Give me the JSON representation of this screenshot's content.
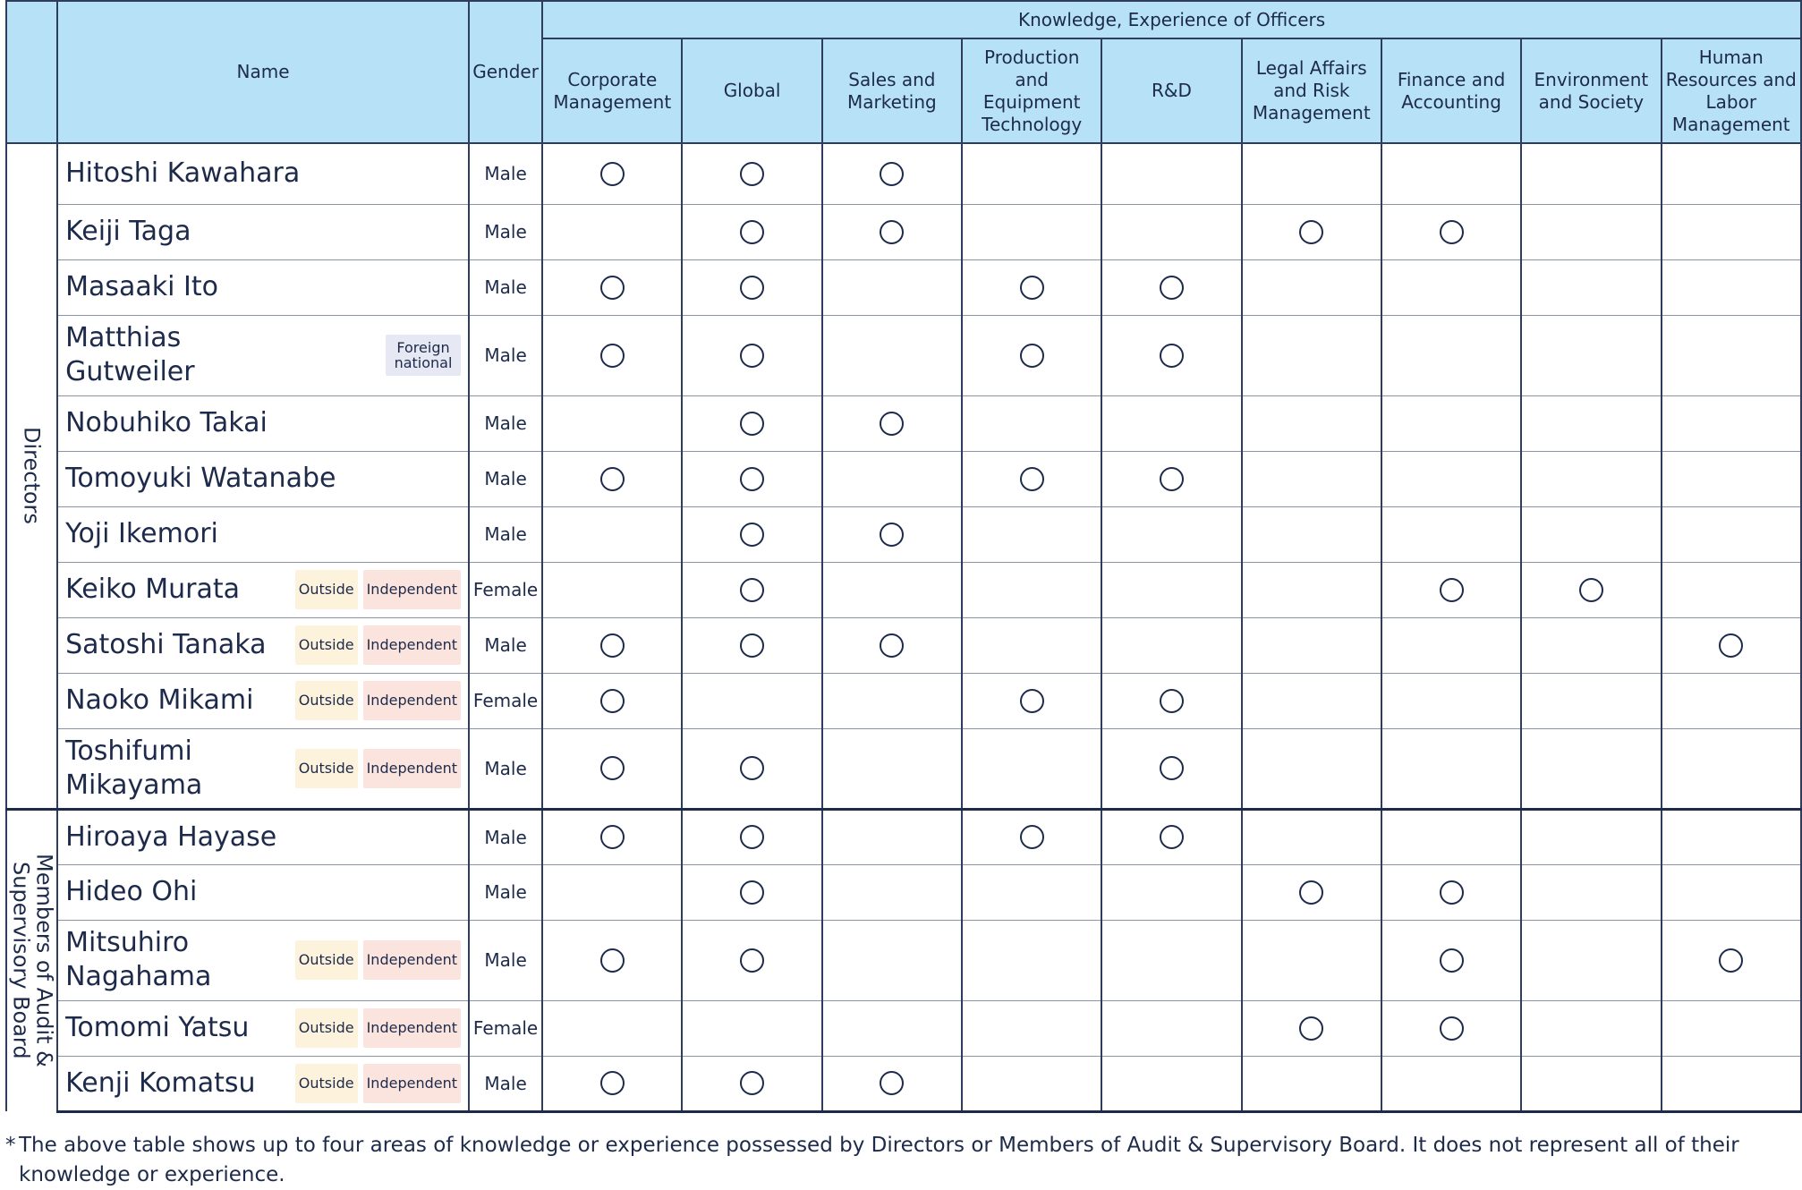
{
  "header": {
    "name_label": "Name",
    "gender_label": "Gender",
    "group_title": "Knowledge, Experience of Officers",
    "columns": [
      "Corporate Management",
      "Global",
      "Sales and Marketing",
      "Production and Equipment Technology",
      "R&D",
      "Legal Affairs and Risk Management",
      "Finance and Accounting",
      "Environment and Society",
      "Human Resources and Labor Management"
    ]
  },
  "groups": [
    {
      "label": "Directors",
      "rows": [
        {
          "name": "Hitoshi Kawahara",
          "gender": "Male",
          "marks": [
            1,
            1,
            1,
            0,
            0,
            0,
            0,
            0,
            0
          ]
        },
        {
          "name": "Keiji Taga",
          "gender": "Male",
          "marks": [
            0,
            1,
            1,
            0,
            0,
            1,
            1,
            0,
            0
          ]
        },
        {
          "name": "Masaaki Ito",
          "gender": "Male",
          "marks": [
            1,
            1,
            0,
            1,
            1,
            0,
            0,
            0,
            0
          ]
        },
        {
          "name": "Matthias Gutweiler",
          "gender": "Male",
          "tag_foreign": "Foreign national",
          "marks": [
            1,
            1,
            0,
            1,
            1,
            0,
            0,
            0,
            0
          ]
        },
        {
          "name": "Nobuhiko Takai",
          "gender": "Male",
          "marks": [
            0,
            1,
            1,
            0,
            0,
            0,
            0,
            0,
            0
          ]
        },
        {
          "name": "Tomoyuki Watanabe",
          "gender": "Male",
          "marks": [
            1,
            1,
            0,
            1,
            1,
            0,
            0,
            0,
            0
          ]
        },
        {
          "name": "Yoji Ikemori",
          "gender": "Male",
          "marks": [
            0,
            1,
            1,
            0,
            0,
            0,
            0,
            0,
            0
          ]
        },
        {
          "name": "Keiko Murata",
          "gender": "Female",
          "tag_outside": "Outside",
          "tag_independent": "Independent",
          "marks": [
            0,
            1,
            0,
            0,
            0,
            0,
            1,
            1,
            0
          ]
        },
        {
          "name": "Satoshi Tanaka",
          "gender": "Male",
          "tag_outside": "Outside",
          "tag_independent": "Independent",
          "marks": [
            1,
            1,
            1,
            0,
            0,
            0,
            0,
            0,
            1
          ]
        },
        {
          "name": "Naoko Mikami",
          "gender": "Female",
          "tag_outside": "Outside",
          "tag_independent": "Independent",
          "marks": [
            1,
            0,
            0,
            1,
            1,
            0,
            0,
            0,
            0
          ]
        },
        {
          "name": "Toshifumi Mikayama",
          "gender": "Male",
          "tag_outside": "Outside",
          "tag_independent": "Independent",
          "marks": [
            1,
            1,
            0,
            0,
            1,
            0,
            0,
            0,
            0
          ]
        }
      ]
    },
    {
      "label": "Members of Audit & Supervisory Board",
      "rows": [
        {
          "name": "Hiroaya Hayase",
          "gender": "Male",
          "marks": [
            1,
            1,
            0,
            1,
            1,
            0,
            0,
            0,
            0
          ]
        },
        {
          "name": "Hideo Ohi",
          "gender": "Male",
          "marks": [
            0,
            1,
            0,
            0,
            0,
            1,
            1,
            0,
            0
          ]
        },
        {
          "name": "Mitsuhiro Nagahama",
          "gender": "Male",
          "tag_outside": "Outside",
          "tag_independent": "Independent",
          "marks": [
            1,
            1,
            0,
            0,
            0,
            0,
            1,
            0,
            1
          ]
        },
        {
          "name": "Tomomi Yatsu",
          "gender": "Female",
          "tag_outside": "Outside",
          "tag_independent": "Independent",
          "marks": [
            0,
            0,
            0,
            0,
            0,
            1,
            1,
            0,
            0
          ]
        },
        {
          "name": "Kenji Komatsu",
          "gender": "Male",
          "tag_outside": "Outside",
          "tag_independent": "Independent",
          "marks": [
            1,
            1,
            1,
            0,
            0,
            0,
            0,
            0,
            0
          ]
        }
      ]
    }
  ],
  "footnote": {
    "mark": "*",
    "text": "The above table shows up to four areas of knowledge or experience possessed by Directors or Members of Audit & Supervisory Board. It does not represent all of their knowledge or experience."
  },
  "colors": {
    "header_bg": "#b6e1f7",
    "text": "#1d2a4a",
    "outside_tag_bg": "#fdf2dc",
    "independent_tag_bg": "#fbe4de",
    "foreign_tag_bg": "#e6e8f4"
  },
  "icons": {
    "mark": "circle-mark-icon"
  }
}
